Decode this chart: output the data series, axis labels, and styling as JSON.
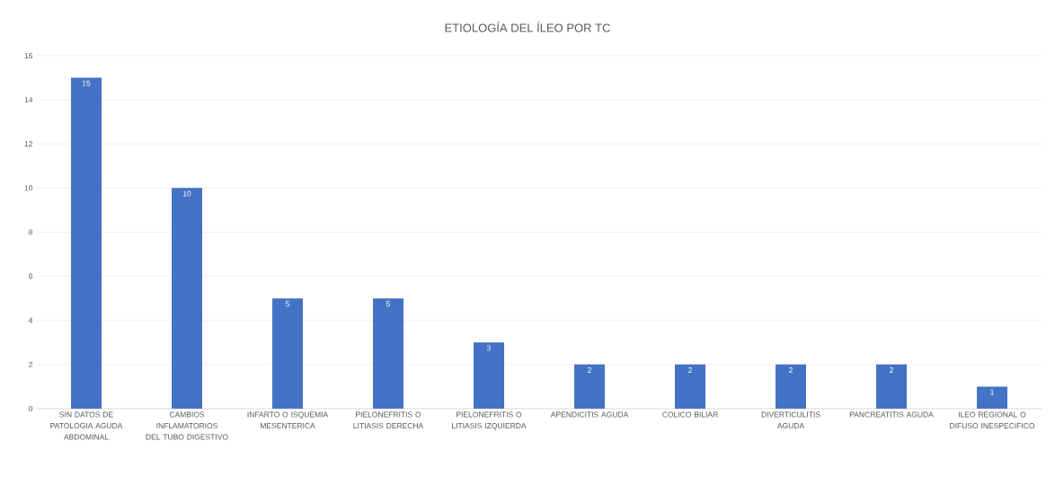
{
  "chart_data": {
    "type": "bar",
    "title": "ETIOLOGÍA DEL ÍLEO POR TC",
    "categories": [
      "SIN DATOS DE PATOLOGIA AGUDA ABDOMINAL",
      "CAMBIOS INFLAMATORIOS DEL TUBO DIGESTIVO",
      "INFARTO O ISQUEMIA MESENTERICA",
      "PIELONEFRITIS O LITIASIS DERECHA",
      "PIELONEFRITIS O LITIASIS IZQUIERDA",
      "APENDICITIS AGUDA",
      "COLICO BILIAR",
      "DIVERTICULITIS AGUDA",
      "PANCREATITIS AGUDA",
      "ILEO REGIONAL O DIFUSO INESPECIFICO"
    ],
    "values": [
      15,
      10,
      5,
      5,
      3,
      2,
      2,
      2,
      2,
      1
    ],
    "color": "#4472c4",
    "ylim": [
      0,
      16
    ],
    "yticks": [
      0,
      2,
      4,
      6,
      8,
      10,
      12,
      14,
      16
    ],
    "grid": "y",
    "data_labels": true
  }
}
